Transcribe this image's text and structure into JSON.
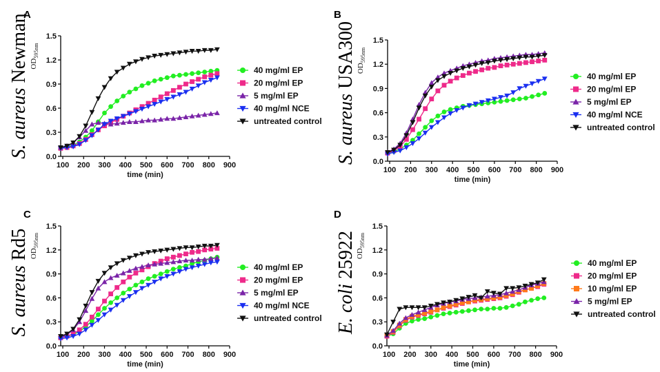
{
  "chart_data": [
    {
      "type": "line",
      "panel_label": "A",
      "organism": {
        "italic": "S. aureus",
        "rest": " Newman"
      },
      "xlabel": "time (min)",
      "ylabel": "OD",
      "ylabel_sub": "595nm",
      "xlim": [
        90,
        900
      ],
      "ylim": [
        0,
        1.5
      ],
      "xticks": [
        100,
        200,
        300,
        400,
        500,
        600,
        700,
        800,
        900
      ],
      "yticks": [
        0.0,
        0.3,
        0.6,
        0.9,
        1.2,
        1.5
      ],
      "x": [
        90,
        120,
        150,
        180,
        210,
        240,
        270,
        300,
        330,
        360,
        390,
        420,
        450,
        480,
        510,
        540,
        570,
        600,
        630,
        660,
        690,
        720,
        750,
        780,
        810,
        840
      ],
      "series": [
        {
          "name": "40 mg/ml EP",
          "color": "#22ee22",
          "marker": "circle",
          "values": [
            0.11,
            0.12,
            0.14,
            0.18,
            0.24,
            0.32,
            0.43,
            0.54,
            0.62,
            0.69,
            0.75,
            0.8,
            0.84,
            0.88,
            0.91,
            0.94,
            0.96,
            0.98,
            1.0,
            1.01,
            1.02,
            1.03,
            1.04,
            1.05,
            1.06,
            1.07
          ]
        },
        {
          "name": "20 mg/ml EP",
          "color": "#ee2a8a",
          "marker": "square",
          "values": [
            0.1,
            0.11,
            0.13,
            0.16,
            0.21,
            0.27,
            0.33,
            0.38,
            0.42,
            0.46,
            0.5,
            0.54,
            0.58,
            0.62,
            0.66,
            0.7,
            0.74,
            0.78,
            0.82,
            0.86,
            0.9,
            0.93,
            0.96,
            0.99,
            1.01,
            1.03
          ]
        },
        {
          "name": "5 mg/ml EP",
          "color": "#7a24a8",
          "marker": "triangle-up",
          "values": [
            0.11,
            0.13,
            0.17,
            0.24,
            0.32,
            0.4,
            0.42,
            0.41,
            0.4,
            0.41,
            0.42,
            0.43,
            0.43,
            0.44,
            0.45,
            0.45,
            0.46,
            0.47,
            0.47,
            0.48,
            0.49,
            0.5,
            0.51,
            0.52,
            0.53,
            0.54
          ]
        },
        {
          "name": "40 mg/ml NCE",
          "color": "#1a2ff0",
          "marker": "triangle-down",
          "values": [
            0.1,
            0.11,
            0.12,
            0.15,
            0.2,
            0.26,
            0.33,
            0.4,
            0.44,
            0.47,
            0.5,
            0.53,
            0.56,
            0.59,
            0.62,
            0.65,
            0.68,
            0.71,
            0.74,
            0.77,
            0.8,
            0.84,
            0.88,
            0.92,
            0.95,
            0.98
          ]
        },
        {
          "name": "untreated control",
          "color": "#111111",
          "marker": "triangle-down",
          "values": [
            0.11,
            0.13,
            0.17,
            0.25,
            0.38,
            0.55,
            0.72,
            0.86,
            0.97,
            1.05,
            1.1,
            1.15,
            1.18,
            1.21,
            1.23,
            1.25,
            1.26,
            1.27,
            1.28,
            1.29,
            1.3,
            1.31,
            1.31,
            1.32,
            1.32,
            1.33
          ]
        }
      ]
    },
    {
      "type": "line",
      "panel_label": "B",
      "organism": {
        "italic": "S. aureus",
        "rest": " USA300"
      },
      "xlabel": "time (min)",
      "ylabel": "OD",
      "ylabel_sub": "595nm",
      "xlim": [
        90,
        900
      ],
      "ylim": [
        0,
        1.5
      ],
      "xticks": [
        100,
        200,
        300,
        400,
        500,
        600,
        700,
        800,
        900
      ],
      "yticks": [
        0.0,
        0.3,
        0.6,
        0.9,
        1.2,
        1.5
      ],
      "x": [
        90,
        120,
        150,
        180,
        210,
        240,
        270,
        300,
        330,
        360,
        390,
        420,
        450,
        480,
        510,
        540,
        570,
        600,
        630,
        660,
        690,
        720,
        750,
        780,
        810,
        840
      ],
      "series": [
        {
          "name": "40 mg/ml EP",
          "color": "#22ee22",
          "marker": "circle",
          "values": [
            0.1,
            0.12,
            0.15,
            0.2,
            0.26,
            0.34,
            0.42,
            0.5,
            0.56,
            0.61,
            0.64,
            0.66,
            0.68,
            0.69,
            0.7,
            0.71,
            0.72,
            0.73,
            0.74,
            0.75,
            0.76,
            0.77,
            0.78,
            0.8,
            0.82,
            0.84
          ]
        },
        {
          "name": "20 mg/ml EP",
          "color": "#ee2a8a",
          "marker": "square",
          "values": [
            0.1,
            0.13,
            0.18,
            0.27,
            0.39,
            0.52,
            0.65,
            0.77,
            0.87,
            0.94,
            0.99,
            1.03,
            1.06,
            1.09,
            1.11,
            1.13,
            1.15,
            1.16,
            1.18,
            1.19,
            1.2,
            1.21,
            1.22,
            1.23,
            1.24,
            1.25
          ]
        },
        {
          "name": "5 mg/ml EP",
          "color": "#7a24a8",
          "marker": "triangle-up",
          "values": [
            0.11,
            0.15,
            0.22,
            0.35,
            0.52,
            0.7,
            0.85,
            0.97,
            1.04,
            1.09,
            1.12,
            1.15,
            1.18,
            1.2,
            1.22,
            1.24,
            1.25,
            1.27,
            1.28,
            1.29,
            1.3,
            1.31,
            1.32,
            1.32,
            1.33,
            1.34
          ]
        },
        {
          "name": "40 mg/ml NCE",
          "color": "#1a2ff0",
          "marker": "triangle-down",
          "values": [
            0.09,
            0.11,
            0.13,
            0.17,
            0.22,
            0.28,
            0.35,
            0.42,
            0.48,
            0.54,
            0.59,
            0.63,
            0.66,
            0.69,
            0.71,
            0.73,
            0.75,
            0.77,
            0.79,
            0.81,
            0.85,
            0.9,
            0.93,
            0.96,
            0.99,
            1.02
          ]
        },
        {
          "name": "untreated control",
          "color": "#111111",
          "marker": "triangle-down",
          "values": [
            0.11,
            0.14,
            0.2,
            0.32,
            0.48,
            0.66,
            0.81,
            0.92,
            1.0,
            1.05,
            1.09,
            1.12,
            1.15,
            1.17,
            1.19,
            1.21,
            1.22,
            1.24,
            1.25,
            1.26,
            1.27,
            1.28,
            1.29,
            1.29,
            1.3,
            1.31
          ]
        }
      ]
    },
    {
      "type": "line",
      "panel_label": "C",
      "organism": {
        "italic": "S. aureus",
        "rest": " Rd5"
      },
      "xlabel": "time (min)",
      "ylabel": "OD",
      "ylabel_sub": "595nm",
      "xlim": [
        90,
        900
      ],
      "ylim": [
        0,
        1.5
      ],
      "xticks": [
        100,
        200,
        300,
        400,
        500,
        600,
        700,
        800,
        900
      ],
      "yticks": [
        0.0,
        0.3,
        0.6,
        0.9,
        1.2,
        1.5
      ],
      "x": [
        90,
        120,
        150,
        180,
        210,
        240,
        270,
        300,
        330,
        360,
        390,
        420,
        450,
        480,
        510,
        540,
        570,
        600,
        630,
        660,
        690,
        720,
        750,
        780,
        810,
        840
      ],
      "series": [
        {
          "name": "40 mg/ml EP",
          "color": "#22ee22",
          "marker": "circle",
          "values": [
            0.11,
            0.12,
            0.14,
            0.18,
            0.24,
            0.31,
            0.39,
            0.47,
            0.54,
            0.6,
            0.66,
            0.71,
            0.76,
            0.8,
            0.84,
            0.87,
            0.9,
            0.93,
            0.96,
            0.98,
            1.0,
            1.03,
            1.05,
            1.07,
            1.09,
            1.11
          ]
        },
        {
          "name": "20 mg/ml EP",
          "color": "#ee2a8a",
          "marker": "square",
          "values": [
            0.1,
            0.12,
            0.15,
            0.2,
            0.27,
            0.36,
            0.46,
            0.56,
            0.65,
            0.73,
            0.8,
            0.86,
            0.91,
            0.95,
            0.99,
            1.03,
            1.06,
            1.09,
            1.11,
            1.13,
            1.15,
            1.17,
            1.18,
            1.2,
            1.21,
            1.22
          ]
        },
        {
          "name": "5 mg/ml EP",
          "color": "#7a24a8",
          "marker": "triangle-up",
          "values": [
            0.11,
            0.14,
            0.2,
            0.3,
            0.44,
            0.59,
            0.72,
            0.8,
            0.85,
            0.88,
            0.91,
            0.94,
            0.97,
            0.99,
            1.01,
            1.02,
            1.03,
            1.04,
            1.05,
            1.06,
            1.07,
            1.07,
            1.08,
            1.08,
            1.09,
            1.1
          ]
        },
        {
          "name": "40 mg/ml NCE",
          "color": "#1a2ff0",
          "marker": "triangle-down",
          "values": [
            0.09,
            0.1,
            0.12,
            0.15,
            0.2,
            0.26,
            0.32,
            0.39,
            0.45,
            0.51,
            0.57,
            0.62,
            0.67,
            0.72,
            0.76,
            0.8,
            0.84,
            0.87,
            0.9,
            0.93,
            0.96,
            0.98,
            1.0,
            1.02,
            1.04,
            1.05
          ]
        },
        {
          "name": "untreated control",
          "color": "#111111",
          "marker": "triangle-down",
          "values": [
            0.12,
            0.15,
            0.21,
            0.33,
            0.5,
            0.67,
            0.81,
            0.91,
            0.98,
            1.03,
            1.07,
            1.1,
            1.13,
            1.15,
            1.17,
            1.18,
            1.19,
            1.2,
            1.21,
            1.22,
            1.23,
            1.23,
            1.24,
            1.25,
            1.25,
            1.26
          ]
        }
      ]
    },
    {
      "type": "line",
      "panel_label": "D",
      "organism": {
        "italic": "E. coli",
        "rest": " 25922"
      },
      "xlabel": "time (min)",
      "ylabel": "OD",
      "ylabel_sub": "595nm",
      "xlim": [
        90,
        900
      ],
      "ylim": [
        0,
        1.5
      ],
      "xticks": [
        100,
        200,
        300,
        400,
        500,
        600,
        700,
        800,
        900
      ],
      "yticks": [
        0.0,
        0.3,
        0.6,
        0.9,
        1.2,
        1.5
      ],
      "x": [
        90,
        120,
        150,
        180,
        210,
        240,
        270,
        300,
        330,
        360,
        390,
        420,
        450,
        480,
        510,
        540,
        570,
        600,
        630,
        660,
        690,
        720,
        750,
        780,
        810,
        840
      ],
      "series": [
        {
          "name": "40 mg/ml EP",
          "color": "#22ee22",
          "marker": "circle",
          "values": [
            0.12,
            0.15,
            0.22,
            0.28,
            0.31,
            0.33,
            0.34,
            0.36,
            0.38,
            0.4,
            0.41,
            0.42,
            0.43,
            0.44,
            0.45,
            0.46,
            0.46,
            0.47,
            0.47,
            0.48,
            0.5,
            0.52,
            0.55,
            0.57,
            0.59,
            0.6
          ]
        },
        {
          "name": "20 mg/ml EP",
          "color": "#ee2a8a",
          "marker": "square",
          "values": [
            0.12,
            0.17,
            0.25,
            0.32,
            0.36,
            0.38,
            0.4,
            0.42,
            0.45,
            0.47,
            0.49,
            0.51,
            0.53,
            0.55,
            0.56,
            0.57,
            0.58,
            0.59,
            0.6,
            0.62,
            0.64,
            0.67,
            0.7,
            0.72,
            0.74,
            0.77
          ]
        },
        {
          "name": "10 mg/ml EP",
          "color": "#ff7a1a",
          "marker": "square",
          "values": [
            0.13,
            0.18,
            0.26,
            0.33,
            0.37,
            0.39,
            0.41,
            0.43,
            0.45,
            0.48,
            0.5,
            0.52,
            0.54,
            0.55,
            0.57,
            0.58,
            0.59,
            0.6,
            0.61,
            0.63,
            0.65,
            0.68,
            0.7,
            0.72,
            0.75,
            0.78
          ]
        },
        {
          "name": "5 mg/ml EP",
          "color": "#7a24a8",
          "marker": "triangle-up",
          "values": [
            0.13,
            0.19,
            0.28,
            0.35,
            0.39,
            0.42,
            0.45,
            0.48,
            0.51,
            0.53,
            0.55,
            0.56,
            0.58,
            0.59,
            0.6,
            0.61,
            0.62,
            0.63,
            0.64,
            0.66,
            0.68,
            0.7,
            0.73,
            0.76,
            0.78,
            0.8
          ]
        },
        {
          "name": "untreated control",
          "color": "#111111",
          "marker": "triangle-down",
          "values": [
            0.14,
            0.3,
            0.46,
            0.48,
            0.48,
            0.48,
            0.48,
            0.5,
            0.52,
            0.54,
            0.55,
            0.57,
            0.59,
            0.61,
            0.63,
            0.6,
            0.68,
            0.66,
            0.65,
            0.72,
            0.72,
            0.73,
            0.75,
            0.77,
            0.79,
            0.83
          ]
        }
      ]
    }
  ]
}
